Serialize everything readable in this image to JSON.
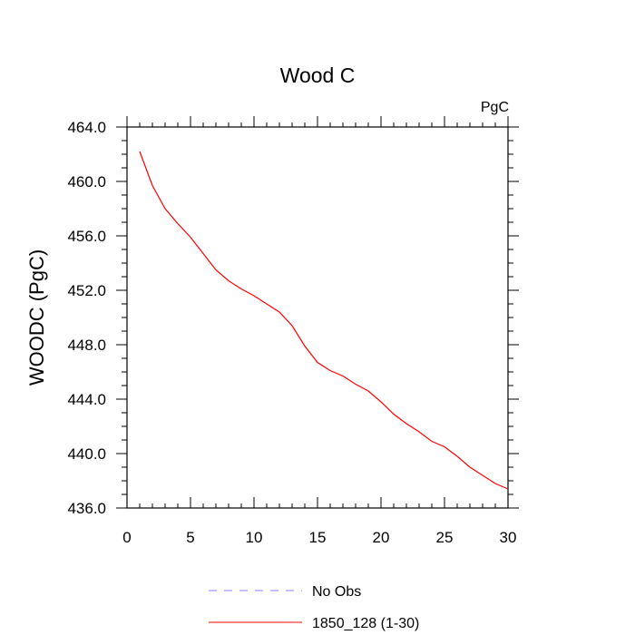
{
  "chart_data": {
    "type": "line",
    "title": "Wood C",
    "units_label": "PgC",
    "xlabel": "",
    "ylabel": "WOODC  (PgC)",
    "xlim": [
      0,
      30
    ],
    "ylim": [
      436,
      464
    ],
    "x_ticks": [
      0,
      5,
      10,
      15,
      20,
      25,
      30
    ],
    "x_tick_labels": [
      "0",
      "5",
      "10",
      "15",
      "20",
      "25",
      "30"
    ],
    "y_ticks": [
      436,
      440,
      444,
      448,
      452,
      456,
      460,
      464
    ],
    "y_tick_labels": [
      "436.0",
      "440.0",
      "444.0",
      "448.0",
      "452.0",
      "456.0",
      "460.0",
      "464.0"
    ],
    "grid": false,
    "series": [
      {
        "name": "No Obs",
        "color": "#8080ff",
        "dashed": true,
        "x": [],
        "values": []
      },
      {
        "name": "1850_128 (1-30)",
        "color": "#ff0000",
        "dashed": false,
        "x": [
          1,
          2,
          3,
          4,
          5,
          6,
          7,
          8,
          9,
          10,
          11,
          12,
          13,
          14,
          15,
          16,
          17,
          18,
          19,
          20,
          21,
          22,
          23,
          24,
          25,
          26,
          27,
          28,
          29,
          30
        ],
        "values": [
          462.2,
          459.7,
          458.0,
          456.9,
          455.9,
          454.7,
          453.5,
          452.7,
          452.1,
          451.6,
          451.0,
          450.4,
          449.4,
          447.9,
          446.7,
          446.1,
          445.7,
          445.1,
          444.6,
          443.8,
          442.9,
          442.2,
          441.6,
          440.9,
          440.5,
          439.8,
          439.0,
          438.4,
          437.8,
          437.4
        ]
      }
    ]
  }
}
